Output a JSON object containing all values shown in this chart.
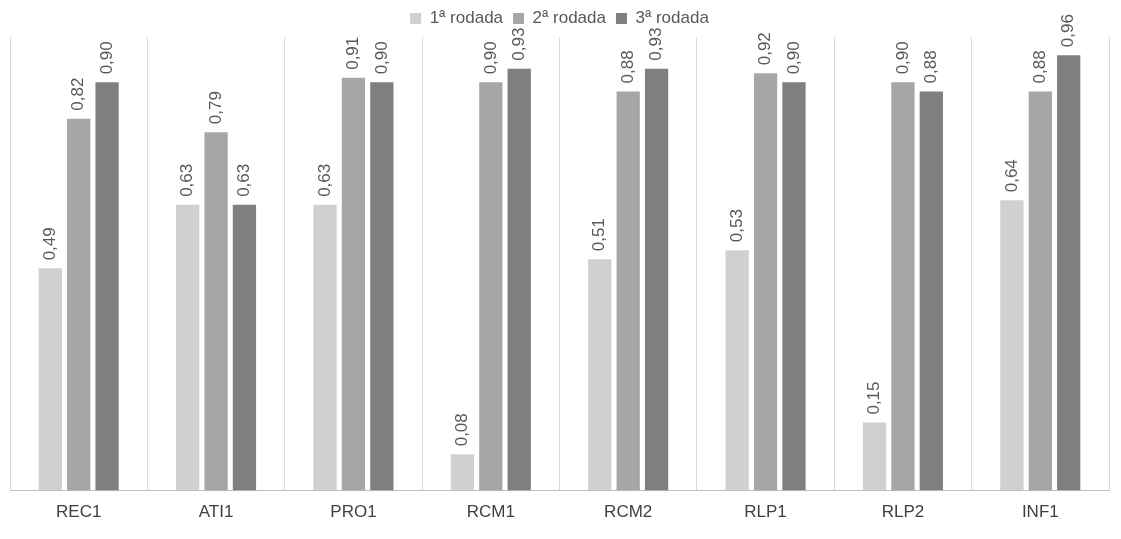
{
  "chart_data": {
    "type": "bar",
    "categories": [
      "REC1",
      "ATI1",
      "PRO1",
      "RCM1",
      "RCM2",
      "RLP1",
      "RLP2",
      "INF1"
    ],
    "series": [
      {
        "name": "1ª rodada",
        "color": "#d0d0d0",
        "values": [
          0.49,
          0.63,
          0.63,
          0.08,
          0.51,
          0.53,
          0.15,
          0.64
        ],
        "value_labels": [
          "0,49",
          "0,63",
          "0,63",
          "0,08",
          "0,51",
          "0,53",
          "0,15",
          "0,64"
        ]
      },
      {
        "name": "2ª rodada",
        "color": "#a6a6a6",
        "values": [
          0.82,
          0.79,
          0.91,
          0.9,
          0.88,
          0.92,
          0.9,
          0.88
        ],
        "value_labels": [
          "0,82",
          "0,79",
          "0,91",
          "0,90",
          "0,88",
          "0,92",
          "0,90",
          "0,88"
        ]
      },
      {
        "name": "3ª rodada",
        "color": "#7f7f7f",
        "values": [
          0.9,
          0.63,
          0.9,
          0.93,
          0.93,
          0.9,
          0.88,
          0.96
        ],
        "value_labels": [
          "0,90",
          "0,63",
          "0,90",
          "0,93",
          "0,93",
          "0,90",
          "0,88",
          "0,96"
        ]
      }
    ],
    "grid": "x",
    "legend": "top"
  }
}
